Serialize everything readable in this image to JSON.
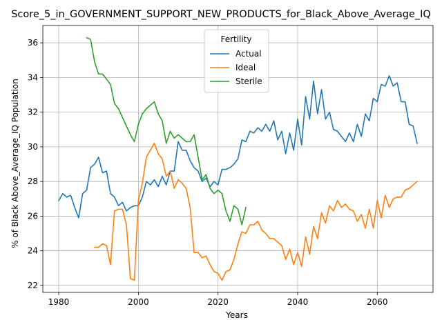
{
  "chart_data": {
    "type": "line",
    "title": "Score_5_in_GOVERNMENT_SUPPORT_NEW_PRODUCTS_for_Black_Above_Average_IQ",
    "xlabel": "Years",
    "ylabel": "% of Black Above_Average_IQ Population",
    "xlim": [
      1976,
      2074
    ],
    "ylim": [
      21.6,
      37.0
    ],
    "xticks": [
      1980,
      2000,
      2020,
      2040,
      2060
    ],
    "yticks": [
      22,
      24,
      26,
      28,
      30,
      32,
      34,
      36
    ],
    "grid": true,
    "legend": {
      "title": "Fertility",
      "placement": "upper-center"
    },
    "series": [
      {
        "name": "Actual",
        "color": "#1f77b4",
        "x": [
          1980,
          1981,
          1982,
          1983,
          1984,
          1985,
          1986,
          1987,
          1988,
          1989,
          1990,
          1991,
          1992,
          1993,
          1994,
          1995,
          1996,
          1997,
          1998,
          1999,
          2000,
          2001,
          2002,
          2003,
          2004,
          2005,
          2006,
          2007,
          2008,
          2009,
          2010,
          2011,
          2012,
          2013,
          2014,
          2015,
          2016,
          2017,
          2018,
          2019,
          2020,
          2021,
          2022,
          2023,
          2024,
          2025,
          2026,
          2027,
          2028,
          2029,
          2030,
          2031,
          2032,
          2033,
          2034,
          2035,
          2036,
          2037,
          2038,
          2039,
          2040,
          2041,
          2042,
          2043,
          2044,
          2045,
          2046,
          2047,
          2048,
          2049,
          2050,
          2051,
          2052,
          2053,
          2054,
          2055,
          2056,
          2057,
          2058,
          2059,
          2060,
          2061,
          2062,
          2063,
          2064,
          2065,
          2066,
          2067,
          2068,
          2069,
          2070
        ],
        "values": [
          26.9,
          27.3,
          27.1,
          27.2,
          26.5,
          25.9,
          27.3,
          27.5,
          28.8,
          29.0,
          29.4,
          28.5,
          28.6,
          27.3,
          27.1,
          26.6,
          26.8,
          26.3,
          26.5,
          26.6,
          26.6,
          27.1,
          28.0,
          27.8,
          28.1,
          27.7,
          28.3,
          27.8,
          28.6,
          28.6,
          30.3,
          29.8,
          29.8,
          29.2,
          28.8,
          28.6,
          28.0,
          28.2,
          27.7,
          28.0,
          27.8,
          28.7,
          28.7,
          28.8,
          29.0,
          29.3,
          30.4,
          30.3,
          30.9,
          30.8,
          31.1,
          30.9,
          31.3,
          30.9,
          31.5,
          30.4,
          30.9,
          29.6,
          30.8,
          29.8,
          31.6,
          30.1,
          32.9,
          31.6,
          33.8,
          31.9,
          33.3,
          31.6,
          32.0,
          31.0,
          30.9,
          30.6,
          30.3,
          30.8,
          30.3,
          31.3,
          30.6,
          31.9,
          31.5,
          32.8,
          32.6,
          33.6,
          33.5,
          34.1,
          33.5,
          33.7,
          32.6,
          32.6,
          31.3,
          31.2,
          30.2
        ]
      },
      {
        "name": "Ideal",
        "color": "#ff7f0e",
        "x": [
          1989,
          1990,
          1991,
          1992,
          1993,
          1994,
          1995,
          1996,
          1997,
          1998,
          1999,
          2000,
          2001,
          2002,
          2003,
          2004,
          2005,
          2006,
          2007,
          2008,
          2009,
          2010,
          2011,
          2012,
          2013,
          2014,
          2015,
          2016,
          2017,
          2018,
          2019,
          2020,
          2021,
          2022,
          2023,
          2024,
          2025,
          2026,
          2027,
          2028,
          2029,
          2030,
          2031,
          2032,
          2033,
          2034,
          2035,
          2036,
          2037,
          2038,
          2039,
          2040,
          2041,
          2042,
          2043,
          2044,
          2045,
          2046,
          2047,
          2048,
          2049,
          2050,
          2051,
          2052,
          2053,
          2054,
          2055,
          2056,
          2057,
          2058,
          2059,
          2060,
          2061,
          2062,
          2063,
          2064,
          2065,
          2066,
          2067,
          2068,
          2069,
          2070
        ],
        "values": [
          24.2,
          24.2,
          24.4,
          24.3,
          23.2,
          26.3,
          26.4,
          26.4,
          25.5,
          22.4,
          22.3,
          26.9,
          27.9,
          29.4,
          29.8,
          30.2,
          29.6,
          29.3,
          28.3,
          28.6,
          27.6,
          28.1,
          27.9,
          27.6,
          26.5,
          23.9,
          23.9,
          23.6,
          23.7,
          23.2,
          22.8,
          22.7,
          22.3,
          22.8,
          22.9,
          23.5,
          24.4,
          25.1,
          25.0,
          25.5,
          25.5,
          25.7,
          25.2,
          25.0,
          24.7,
          24.7,
          24.5,
          24.3,
          23.5,
          24.1,
          23.2,
          23.9,
          23.1,
          24.8,
          23.8,
          25.4,
          24.7,
          26.2,
          25.6,
          26.6,
          26.3,
          26.9,
          26.5,
          26.7,
          26.4,
          26.3,
          25.7,
          26.1,
          25.3,
          26.4,
          25.3,
          26.9,
          25.9,
          27.2,
          26.5,
          27.0,
          27.1,
          27.1,
          27.5,
          27.6,
          27.8,
          28.0
        ]
      },
      {
        "name": "Sterile",
        "color": "#2ca02c",
        "x": [
          1987,
          1988,
          1989,
          1990,
          1991,
          1992,
          1993,
          1994,
          1995,
          1996,
          1997,
          1998,
          1999,
          2000,
          2001,
          2002,
          2003,
          2004,
          2005,
          2006,
          2007,
          2008,
          2009,
          2010,
          2011,
          2012,
          2013,
          2014,
          2015,
          2016,
          2017,
          2018,
          2019,
          2020,
          2021,
          2022,
          2023,
          2024,
          2025,
          2026,
          2027
        ],
        "values": [
          36.3,
          36.2,
          34.9,
          34.2,
          34.2,
          33.9,
          33.6,
          32.5,
          32.2,
          31.7,
          31.2,
          30.7,
          30.3,
          31.3,
          31.9,
          32.2,
          32.4,
          32.6,
          31.9,
          31.5,
          30.2,
          30.9,
          30.5,
          30.7,
          30.5,
          30.3,
          30.3,
          30.7,
          29.4,
          28.1,
          28.4,
          27.6,
          27.3,
          27.5,
          27.3,
          26.3,
          25.7,
          26.6,
          26.4,
          25.5,
          26.5
        ]
      }
    ]
  }
}
